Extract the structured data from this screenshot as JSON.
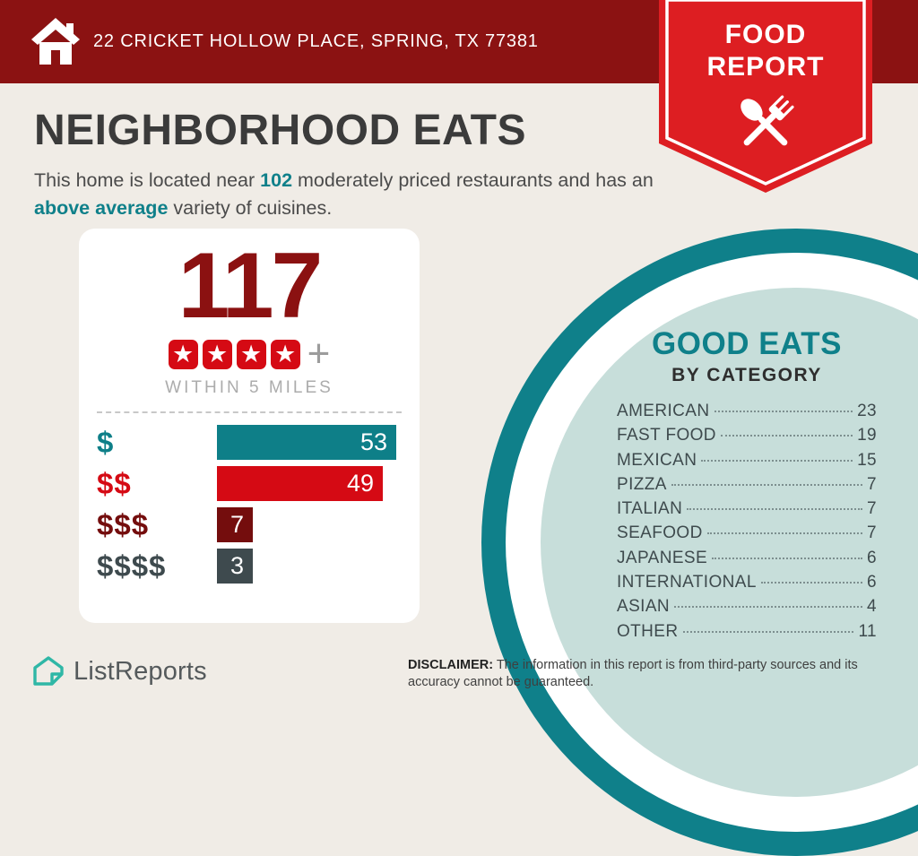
{
  "header": {
    "address": "22 CRICKET HOLLOW PLACE, SPRING, TX 77381"
  },
  "ribbon": {
    "line1": "FOOD",
    "line2": "REPORT"
  },
  "title": "NEIGHBORHOOD EATS",
  "intro": {
    "pre": "This home is located near ",
    "count": "102",
    "mid": " moderately priced restaurants and has an ",
    "highlight": "above average",
    "post": " variety of cuisines."
  },
  "summary_card": {
    "total": "117",
    "stars": 4,
    "plus": "+",
    "caption": "WITHIN 5 MILES"
  },
  "chart_data": [
    {
      "type": "bar",
      "orientation": "horizontal",
      "categories": [
        "$",
        "$$",
        "$$$",
        "$$$$"
      ],
      "values": [
        53,
        49,
        7,
        3
      ],
      "bar_colors": [
        "#0E7F88",
        "#D50A14",
        "#740D0D",
        "#3E4A4E"
      ],
      "xlim": [
        0,
        53
      ],
      "value_labels_inside_bars": true
    },
    {
      "type": "table",
      "title": "GOOD EATS",
      "subtitle": "BY CATEGORY",
      "categories": [
        "AMERICAN",
        "FAST FOOD",
        "MEXICAN",
        "PIZZA",
        "ITALIAN",
        "SEAFOOD",
        "JAPANESE",
        "INTERNATIONAL",
        "ASIAN",
        "OTHER"
      ],
      "values": [
        23,
        19,
        15,
        7,
        7,
        7,
        6,
        6,
        4,
        11
      ]
    }
  ],
  "good_eats": {
    "title": "GOOD EATS",
    "subtitle": "BY CATEGORY",
    "items": [
      {
        "label": "AMERICAN",
        "value": "23"
      },
      {
        "label": "FAST FOOD",
        "value": "19"
      },
      {
        "label": "MEXICAN",
        "value": "15"
      },
      {
        "label": "PIZZA",
        "value": "7"
      },
      {
        "label": "ITALIAN",
        "value": "7"
      },
      {
        "label": "SEAFOOD",
        "value": "7"
      },
      {
        "label": "JAPANESE",
        "value": "6"
      },
      {
        "label": "INTERNATIONAL",
        "value": "6"
      },
      {
        "label": "ASIAN",
        "value": "4"
      },
      {
        "label": "OTHER",
        "value": "11"
      }
    ]
  },
  "footer": {
    "brand": "ListReports",
    "disclaimer_label": "DISCLAIMER:",
    "disclaimer_text": " The information in this report is from third-party sources and its accuracy cannot be guaranteed."
  },
  "colors": {
    "header_red": "#8B1212",
    "ribbon_red": "#DD1E22",
    "accent_teal": "#0F808A",
    "bright_red": "#D50A14",
    "dark_red": "#740D0D",
    "dark_slate": "#3E4A4E",
    "circle_fill": "#C7DEDA",
    "background_cream": "#F0ECE6",
    "logo_teal": "#2FB7A6"
  }
}
